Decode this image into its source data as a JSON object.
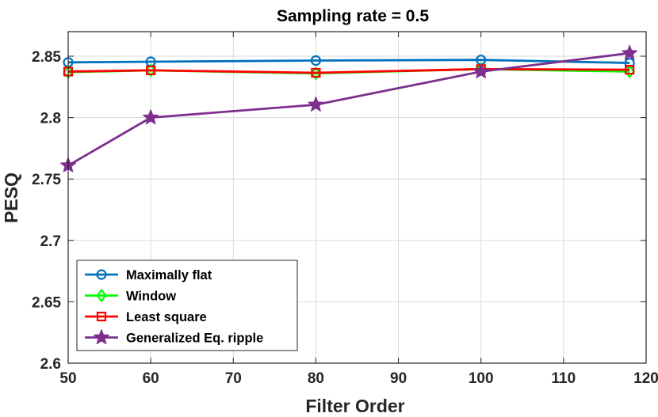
{
  "chart_data": {
    "type": "line",
    "title": "Sampling rate = 0.5",
    "xlabel": "Filter Order",
    "ylabel": "PESQ",
    "xlim": [
      50,
      120
    ],
    "ylim": [
      2.6,
      2.87
    ],
    "xticks": [
      "50",
      "60",
      "70",
      "80",
      "90",
      "100",
      "110",
      "120"
    ],
    "yticks": [
      "2.6",
      "2.65",
      "2.7",
      "2.75",
      "2.8",
      "2.85"
    ],
    "grid": true,
    "legend_position": "bottom-left",
    "x": [
      50,
      60,
      80,
      100,
      118
    ],
    "series": [
      {
        "name": "Maximally flat",
        "color": "#0072BD",
        "marker": "circle",
        "values": [
          2.845,
          2.8455,
          2.8465,
          2.847,
          2.8445
        ]
      },
      {
        "name": "Window",
        "color": "#00FF00",
        "marker": "diamond",
        "values": [
          2.837,
          2.8385,
          2.836,
          2.8395,
          2.8375
        ]
      },
      {
        "name": "Least square",
        "color": "#FF0000",
        "marker": "square",
        "values": [
          2.8375,
          2.8385,
          2.8365,
          2.8395,
          2.839
        ]
      },
      {
        "name": "Generalized Eq. ripple",
        "color": "#7E2F8E",
        "marker": "star",
        "values": [
          2.761,
          2.8,
          2.8105,
          2.8375,
          2.8525
        ]
      }
    ]
  }
}
